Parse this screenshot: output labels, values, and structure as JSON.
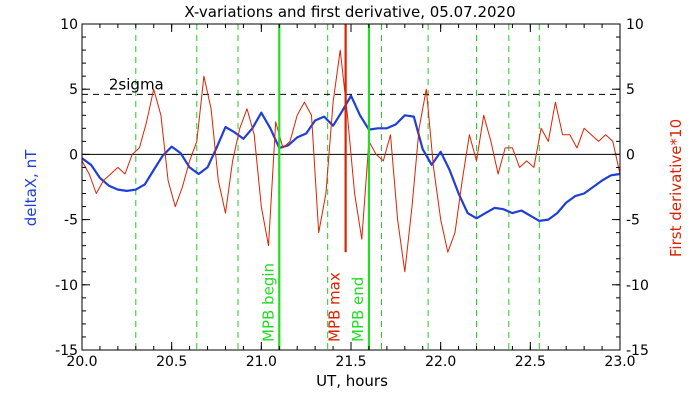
{
  "chart_data": {
    "type": "line",
    "title": "X-variations and first derivative, 05.07.2020",
    "xlabel": "UT, hours",
    "ylabel_left": "deltaX, nT",
    "ylabel_right": "First derivative*10",
    "xlim": [
      20.0,
      23.0
    ],
    "ylim": [
      -15,
      10
    ],
    "x_ticks": [
      20.0,
      20.5,
      21.0,
      21.5,
      22.0,
      22.5,
      23.0
    ],
    "x_tick_labels": [
      "20.0",
      "20.5",
      "21.0",
      "21.5",
      "22.0",
      "22.5",
      "23.0"
    ],
    "y_ticks": [
      -15,
      -10,
      -5,
      0,
      5,
      10
    ],
    "y_tick_labels": [
      "-15",
      "-10",
      "-5",
      "0",
      "5",
      "10"
    ],
    "colors": {
      "deltaX": "#1f3fd6",
      "derivative": "#dd2200",
      "begin_end": "#22dd22",
      "max": "#dd2200",
      "guides": "#22cc22",
      "axes": "#000000"
    },
    "threshold": {
      "label": "2sigma",
      "y": 4.6
    },
    "zero_line": 0,
    "guide_lines_x": [
      20.3,
      20.64,
      20.87,
      21.37,
      21.67,
      21.93,
      22.2,
      22.38,
      22.55
    ],
    "markers": [
      {
        "label": "MPB begin",
        "x": 21.1,
        "y_top": 10,
        "y_bottom": -15,
        "color": "#22dd22"
      },
      {
        "label": "MPB max",
        "x": 21.47,
        "y_top": 10,
        "y_bottom": -7.5,
        "color": "#dd2200"
      },
      {
        "label": "MPB end",
        "x": 21.6,
        "y_top": 10,
        "y_bottom": -15,
        "color": "#22dd22"
      }
    ],
    "series": [
      {
        "name": "deltaX, nT",
        "color": "#1f3fd6",
        "x": [
          20.0,
          20.05,
          20.1,
          20.15,
          20.2,
          20.25,
          20.3,
          20.35,
          20.4,
          20.45,
          20.5,
          20.55,
          20.6,
          20.65,
          20.7,
          20.75,
          20.8,
          20.85,
          20.9,
          20.95,
          21.0,
          21.05,
          21.1,
          21.15,
          21.2,
          21.25,
          21.3,
          21.35,
          21.4,
          21.45,
          21.5,
          21.55,
          21.6,
          21.65,
          21.7,
          21.75,
          21.8,
          21.85,
          21.9,
          21.95,
          22.0,
          22.05,
          22.1,
          22.15,
          22.2,
          22.25,
          22.3,
          22.35,
          22.4,
          22.45,
          22.5,
          22.55,
          22.6,
          22.65,
          22.7,
          22.75,
          22.8,
          22.85,
          22.9,
          22.95,
          23.0
        ],
        "values": [
          -0.3,
          -0.8,
          -1.8,
          -2.4,
          -2.7,
          -2.8,
          -2.7,
          -2.3,
          -1.2,
          -0.1,
          0.6,
          0.1,
          -1.0,
          -1.5,
          -1.0,
          0.5,
          2.1,
          1.7,
          1.2,
          2.0,
          3.2,
          2.0,
          0.5,
          0.7,
          1.3,
          1.6,
          2.6,
          2.9,
          2.2,
          3.3,
          4.5,
          3.0,
          1.9,
          2.0,
          2.0,
          2.3,
          3.0,
          2.9,
          0.4,
          -0.8,
          0.2,
          -1.2,
          -3.0,
          -4.5,
          -4.9,
          -4.5,
          -4.1,
          -4.2,
          -4.5,
          -4.3,
          -4.7,
          -5.1,
          -5.0,
          -4.5,
          -3.7,
          -3.2,
          -3.0,
          -2.5,
          -2.0,
          -1.6,
          -1.5
        ]
      },
      {
        "name": "First derivative*10",
        "color": "#dd2200",
        "x": [
          20.0,
          20.04,
          20.08,
          20.12,
          20.16,
          20.2,
          20.24,
          20.28,
          20.32,
          20.36,
          20.4,
          20.44,
          20.48,
          20.52,
          20.56,
          20.6,
          20.64,
          20.68,
          20.72,
          20.76,
          20.8,
          20.84,
          20.88,
          20.92,
          20.96,
          21.0,
          21.04,
          21.08,
          21.12,
          21.16,
          21.2,
          21.24,
          21.28,
          21.32,
          21.36,
          21.4,
          21.44,
          21.48,
          21.52,
          21.56,
          21.6,
          21.64,
          21.68,
          21.72,
          21.76,
          21.8,
          21.84,
          21.88,
          21.92,
          21.96,
          22.0,
          22.04,
          22.08,
          22.12,
          22.16,
          22.2,
          22.24,
          22.28,
          22.32,
          22.36,
          22.4,
          22.44,
          22.48,
          22.52,
          22.56,
          22.6,
          22.64,
          22.68,
          22.72,
          22.76,
          22.8,
          22.84,
          22.88,
          22.92,
          22.96,
          23.0
        ],
        "values": [
          -0.5,
          -1.5,
          -3.0,
          -2.0,
          -1.5,
          -1.0,
          -1.5,
          0.0,
          0.5,
          2.5,
          5.0,
          3.0,
          -2.0,
          -4.0,
          -2.5,
          -0.5,
          1.0,
          6.0,
          3.5,
          -2.0,
          -4.5,
          -0.5,
          2.0,
          3.5,
          1.5,
          -4.0,
          -7.0,
          2.5,
          0.5,
          1.0,
          3.0,
          4.0,
          3.0,
          -6.0,
          -3.0,
          4.0,
          8.0,
          3.0,
          -3.0,
          -6.5,
          1.0,
          0.0,
          -0.5,
          1.5,
          -5.0,
          -9.0,
          -4.0,
          2.0,
          5.0,
          -1.0,
          -5.0,
          -7.5,
          -6.0,
          -2.0,
          1.5,
          -0.5,
          3.0,
          1.0,
          -1.5,
          0.5,
          0.5,
          -1.0,
          -0.5,
          -1.0,
          2.0,
          1.0,
          4.0,
          1.5,
          1.5,
          0.5,
          2.0,
          1.5,
          1.0,
          1.5,
          1.0,
          -1.5
        ]
      }
    ]
  }
}
